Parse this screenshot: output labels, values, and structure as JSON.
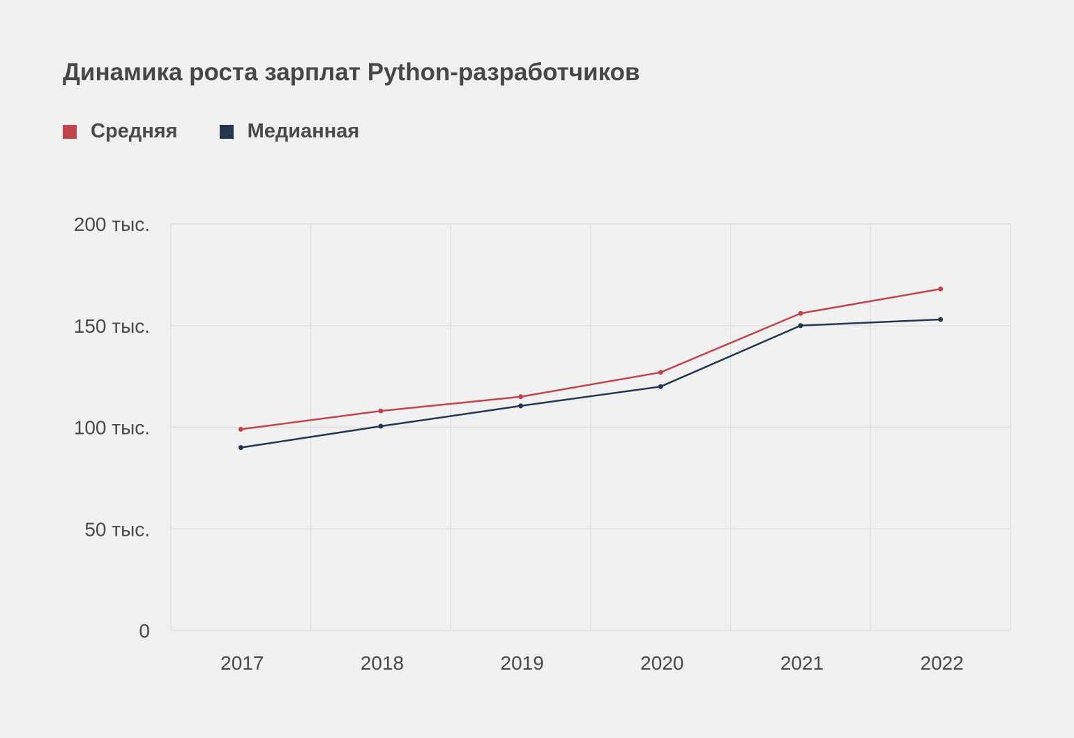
{
  "chart_data": {
    "type": "line",
    "title": "Динамика роста зарплат Python-разработчиков",
    "x": [
      "2017",
      "2018",
      "2019",
      "2020",
      "2021",
      "2022"
    ],
    "series": [
      {
        "name": "Средняя",
        "color": "#c0444e",
        "values": [
          99000,
          108000,
          115000,
          127000,
          156000,
          168000
        ]
      },
      {
        "name": "Медианная",
        "color": "#253650",
        "values": [
          90000,
          100500,
          110500,
          120000,
          150000,
          153000
        ]
      }
    ],
    "yticks": [
      {
        "value": 0,
        "label": "0"
      },
      {
        "value": 50000,
        "label": "50 тыс."
      },
      {
        "value": 100000,
        "label": "100 тыс."
      },
      {
        "value": 150000,
        "label": "150 тыс."
      },
      {
        "value": 200000,
        "label": "200 тыс."
      }
    ],
    "ylim": [
      0,
      200000
    ],
    "xlabel": "",
    "ylabel": "",
    "grid": true,
    "legend": "top-left"
  }
}
